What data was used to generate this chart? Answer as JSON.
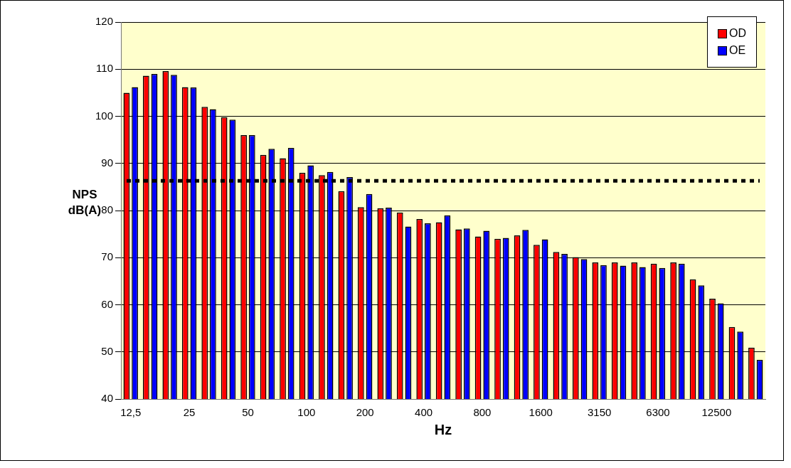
{
  "chart_data": {
    "type": "bar",
    "xlabel": "Hz",
    "ylabel": "NPS dB(A)",
    "categories": [
      "12,5",
      null,
      null,
      "25",
      null,
      null,
      "50",
      null,
      null,
      "100",
      null,
      null,
      "200",
      null,
      null,
      "400",
      null,
      null,
      "800",
      null,
      null,
      "1600",
      null,
      null,
      "3150",
      null,
      null,
      "6300",
      null,
      null,
      "12500",
      null,
      null
    ],
    "series": [
      {
        "name": "OD",
        "color": "#ff0000",
        "values": [
          105,
          108.6,
          109.6,
          106.2,
          102,
          99.8,
          96,
          91.8,
          91.1,
          88,
          87.5,
          84.1,
          80.7,
          80.5,
          79.6,
          78.2,
          77.5,
          76,
          74.5,
          74,
          74.7,
          72.7,
          71.2,
          70.1,
          69,
          69,
          69,
          68.7,
          69,
          65.4,
          61.3,
          55.3,
          50.9
        ]
      },
      {
        "name": "OE",
        "color": "#0000ff",
        "values": [
          106.2,
          109,
          108.8,
          106.1,
          101.5,
          99.3,
          96,
          93.1,
          93.3,
          89.6,
          88.2,
          87.1,
          83.5,
          80.6,
          76.6,
          77.3,
          79,
          76.2,
          75.7,
          74.2,
          75.9,
          73.9,
          70.8,
          69.7,
          68.4,
          68.3,
          68,
          67.8,
          68.7,
          64.1,
          60.3,
          54.3,
          48.3
        ]
      }
    ],
    "ylim": [
      40,
      120
    ],
    "yticks": [
      40,
      50,
      60,
      70,
      80,
      90,
      100,
      110,
      120
    ],
    "ref_lines": [
      {
        "axis": "y",
        "value": 86.3,
        "color": "#000000",
        "line_style": "dotted"
      }
    ],
    "grid": "y",
    "legend": "top right"
  }
}
